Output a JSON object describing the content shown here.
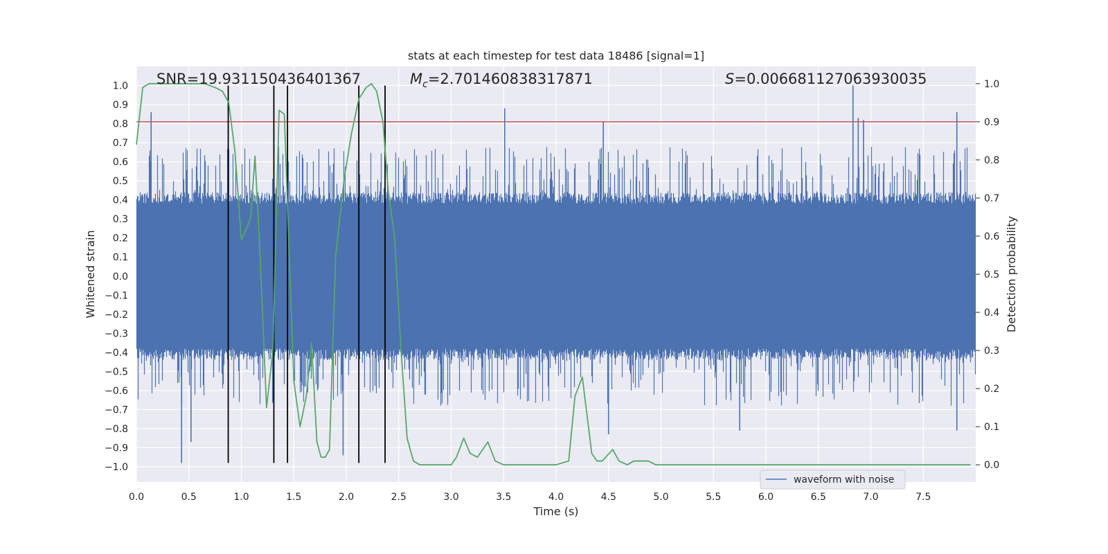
{
  "chart_data": {
    "type": "line",
    "title": "stats at each timestep for test data 18486 [signal=1]",
    "xlabel": "Time (s)",
    "ylabel": "Whitened strain",
    "y2label": "Detection probability",
    "xlim": [
      0.0,
      8.0
    ],
    "ylim": [
      -1.08,
      1.1
    ],
    "y2lim": [
      -0.045,
      1.045
    ],
    "x_ticks": [
      0.0,
      0.5,
      1.0,
      1.5,
      2.0,
      2.5,
      3.0,
      3.5,
      4.0,
      4.5,
      5.0,
      5.5,
      6.0,
      6.5,
      7.0,
      7.5
    ],
    "x_tick_labels": [
      "0.0",
      "0.5",
      "1.0",
      "1.5",
      "2.0",
      "2.5",
      "3.0",
      "3.5",
      "4.0",
      "4.5",
      "5.0",
      "5.5",
      "6.0",
      "6.5",
      "7.0",
      "7.5"
    ],
    "y_ticks": [
      1.0,
      0.9,
      0.8,
      0.7,
      0.6,
      0.5,
      0.4,
      0.3,
      0.2,
      0.1,
      0.0,
      -0.1,
      -0.2,
      -0.3,
      -0.4,
      -0.5,
      -0.6,
      -0.7,
      -0.8,
      -0.9,
      -1.0
    ],
    "y_tick_labels": [
      "1.0",
      "0.9",
      "0.8",
      "0.7",
      "0.6",
      "0.5",
      "0.4",
      "0.3",
      "0.2",
      "0.1",
      "0.0",
      "−0.1",
      "−0.2",
      "−0.3",
      "−0.4",
      "−0.5",
      "−0.6",
      "−0.7",
      "−0.8",
      "−0.9",
      "−1.0"
    ],
    "y2_ticks": [
      1.0,
      0.9,
      0.8,
      0.7,
      0.6,
      0.5,
      0.4,
      0.3,
      0.2,
      0.1,
      0.0
    ],
    "y2_tick_labels": [
      "1.0",
      "0.9",
      "0.8",
      "0.7",
      "0.6",
      "0.5",
      "0.4",
      "0.3",
      "0.2",
      "0.1",
      "0.0"
    ],
    "grid": true,
    "annotations": {
      "snr_label": "SNR=19.931150436401367",
      "mc_prefix": "M",
      "mc_sub": "c",
      "mc_value": "=2.701460838317871",
      "s_prefix": "S",
      "s_value": "=0.006681127063930035"
    },
    "threshold_y2": 0.9,
    "vertical_lines_x": [
      0.875,
      1.31,
      1.44,
      2.12,
      2.37
    ],
    "vertical_lines_yrange": [
      -0.98,
      1.0
    ],
    "waveform": {
      "name": "waveform with noise",
      "color": "#4c72b0",
      "band": [
        -0.38,
        0.38
      ],
      "seed": 18486,
      "spike_peaks": [
        {
          "x": 0.14,
          "y": 0.86
        },
        {
          "x": 0.43,
          "y": -0.98
        },
        {
          "x": 0.52,
          "y": -0.87
        },
        {
          "x": 1.97,
          "y": -0.94
        },
        {
          "x": 3.51,
          "y": 0.88
        },
        {
          "x": 4.45,
          "y": 0.81
        },
        {
          "x": 4.5,
          "y": -0.83
        },
        {
          "x": 5.75,
          "y": -0.81
        },
        {
          "x": 6.83,
          "y": 1.0
        },
        {
          "x": 6.88,
          "y": 0.83
        },
        {
          "x": 6.93,
          "y": 0.82
        },
        {
          "x": 7.82,
          "y": 0.86
        },
        {
          "x": 7.82,
          "y": -0.81
        }
      ]
    },
    "probability": {
      "name": "detection probability",
      "color": "#55a868",
      "x": [
        0.0,
        0.06,
        0.12,
        0.25,
        0.5,
        0.65,
        0.75,
        0.82,
        0.88,
        0.94,
        1.0,
        1.05,
        1.09,
        1.13,
        1.17,
        1.24,
        1.3,
        1.36,
        1.41,
        1.45,
        1.5,
        1.56,
        1.62,
        1.67,
        1.72,
        1.76,
        1.8,
        1.84,
        1.9,
        1.98,
        2.05,
        2.12,
        2.19,
        2.24,
        2.29,
        2.35,
        2.4,
        2.46,
        2.52,
        2.58,
        2.64,
        2.7,
        2.78,
        2.9,
        3.0,
        3.05,
        3.12,
        3.18,
        3.25,
        3.35,
        3.42,
        3.5,
        3.7,
        3.9,
        4.0,
        4.12,
        4.18,
        4.25,
        4.34,
        4.39,
        4.44,
        4.54,
        4.6,
        4.68,
        4.74,
        4.82,
        4.88,
        4.95,
        5.1,
        5.5,
        6.0,
        6.5,
        7.0,
        7.5,
        7.95
      ],
      "y": [
        0.84,
        0.99,
        1.0,
        1.0,
        1.0,
        1.0,
        0.99,
        0.98,
        0.95,
        0.82,
        0.59,
        0.62,
        0.65,
        0.81,
        0.6,
        0.15,
        0.3,
        0.93,
        0.92,
        0.6,
        0.22,
        0.1,
        0.18,
        0.32,
        0.06,
        0.02,
        0.02,
        0.04,
        0.55,
        0.75,
        0.87,
        0.96,
        0.99,
        1.0,
        0.98,
        0.9,
        0.72,
        0.6,
        0.31,
        0.07,
        0.01,
        0.0,
        0.0,
        0.0,
        0.0,
        0.02,
        0.07,
        0.03,
        0.02,
        0.06,
        0.01,
        0.0,
        0.0,
        0.0,
        0.0,
        0.01,
        0.18,
        0.23,
        0.03,
        0.01,
        0.01,
        0.04,
        0.01,
        0.0,
        0.01,
        0.01,
        0.01,
        0.0,
        0.0,
        0.0,
        0.0,
        0.0,
        0.0,
        0.0,
        0.0
      ]
    },
    "threshold_color": "#c44e52",
    "vline_color": "#000000",
    "legend_placement": "lower-right"
  }
}
